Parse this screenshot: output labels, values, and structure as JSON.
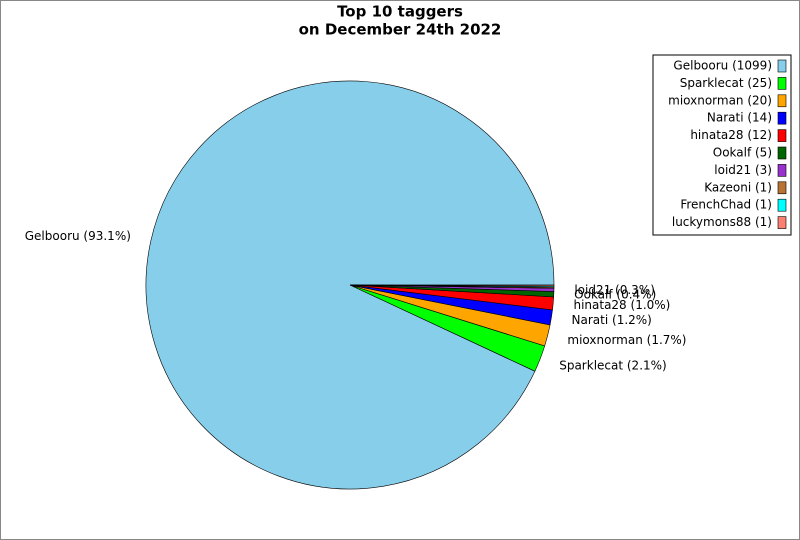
{
  "chart_data": {
    "type": "pie",
    "title": [
      "Top 10 taggers",
      "on December 24th 2022"
    ],
    "categories": [
      "Gelbooru (1099)",
      "Sparklecat (25)",
      "mioxnorman (20)",
      "Narati (14)",
      "hinata28 (12)",
      "Ookalf (5)",
      "loid21 (3)",
      "Kazeoni (1)",
      "FrenchChad (1)",
      "luckymons88 (1)"
    ],
    "values": [
      1099,
      25,
      20,
      14,
      12,
      5,
      3,
      1,
      1,
      1
    ],
    "value_labels": [
      "Gelbooru (93.1%)",
      "Sparklecat (2.1%)",
      "mioxnorman (1.7%)",
      "Narati (1.2%)",
      "hinata28 (1.0%)",
      "Ookalf (0.4%)",
      "loid21 (0.3%)",
      null,
      null,
      null
    ],
    "colors": [
      "#87ceeb",
      "#00ff00",
      "#ffa500",
      "#0000ff",
      "#ff0000",
      "#006400",
      "#9932cc",
      "#b87333",
      "#00ffff",
      "#fa8072"
    ],
    "legend": "upper right"
  }
}
